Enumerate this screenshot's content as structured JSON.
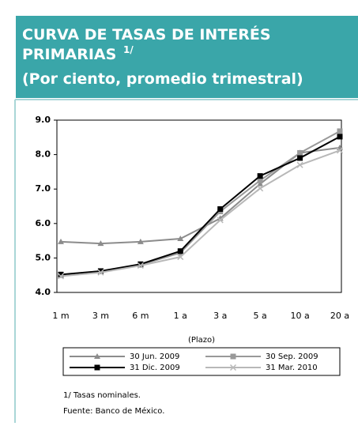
{
  "chart_data": {
    "type": "line",
    "title_lines": [
      "CURVA DE TASAS DE INTERÉS",
      "PRIMARIAS"
    ],
    "title_sup": "1/",
    "subtitle": "(Por ciento, promedio trimestral)",
    "x_label": "(Plazo)",
    "categories": [
      "1 m",
      "3 m",
      "6 m",
      "1 a",
      "3 a",
      "5 a",
      "10 a",
      "20 a"
    ],
    "series": [
      {
        "name": "30 Jun. 2009",
        "color": "#8c8c8c",
        "marker": "triangle",
        "values": [
          5.47,
          5.42,
          5.47,
          5.56,
          6.15,
          7.15,
          8.05,
          8.2
        ]
      },
      {
        "name": "30 Sep. 2009",
        "color": "#999999",
        "marker": "square",
        "values": [
          4.5,
          4.62,
          4.8,
          5.15,
          6.35,
          7.25,
          8.05,
          8.68
        ]
      },
      {
        "name": "31 Dic. 2009",
        "color": "#000000",
        "marker": "square",
        "values": [
          4.52,
          4.62,
          4.82,
          5.2,
          6.42,
          7.38,
          7.9,
          8.52
        ]
      },
      {
        "name": "31 Mar. 2010",
        "color": "#b8b8b8",
        "marker": "x",
        "values": [
          4.47,
          4.58,
          4.78,
          5.03,
          6.1,
          7.02,
          7.7,
          8.12
        ]
      }
    ],
    "ylim": [
      4,
      9
    ],
    "yticks": [
      {
        "value": 4,
        "label": "4.0"
      },
      {
        "value": 5,
        "label": "5.0"
      },
      {
        "value": 6,
        "label": "6.0"
      },
      {
        "value": 7,
        "label": "7.0"
      },
      {
        "value": 8,
        "label": "8.0"
      },
      {
        "value": 9,
        "label": "9.0"
      }
    ],
    "footnote": "1/ Tasas nominales.",
    "source": "Fuente:  Banco de México."
  }
}
